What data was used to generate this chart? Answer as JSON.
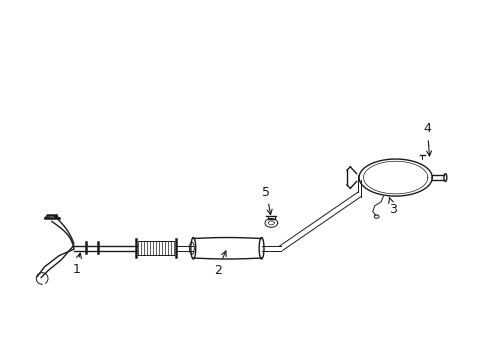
{
  "bg_color": "#ffffff",
  "line_color": "#1a1a1a",
  "fig_width": 4.89,
  "fig_height": 3.6,
  "dpi": 100,
  "xlim": [
    0,
    10
  ],
  "ylim": [
    0,
    7
  ],
  "lw_main": 1.0,
  "lw_thick": 1.8,
  "lw_thin": 0.7,
  "label_fontsize": 9
}
